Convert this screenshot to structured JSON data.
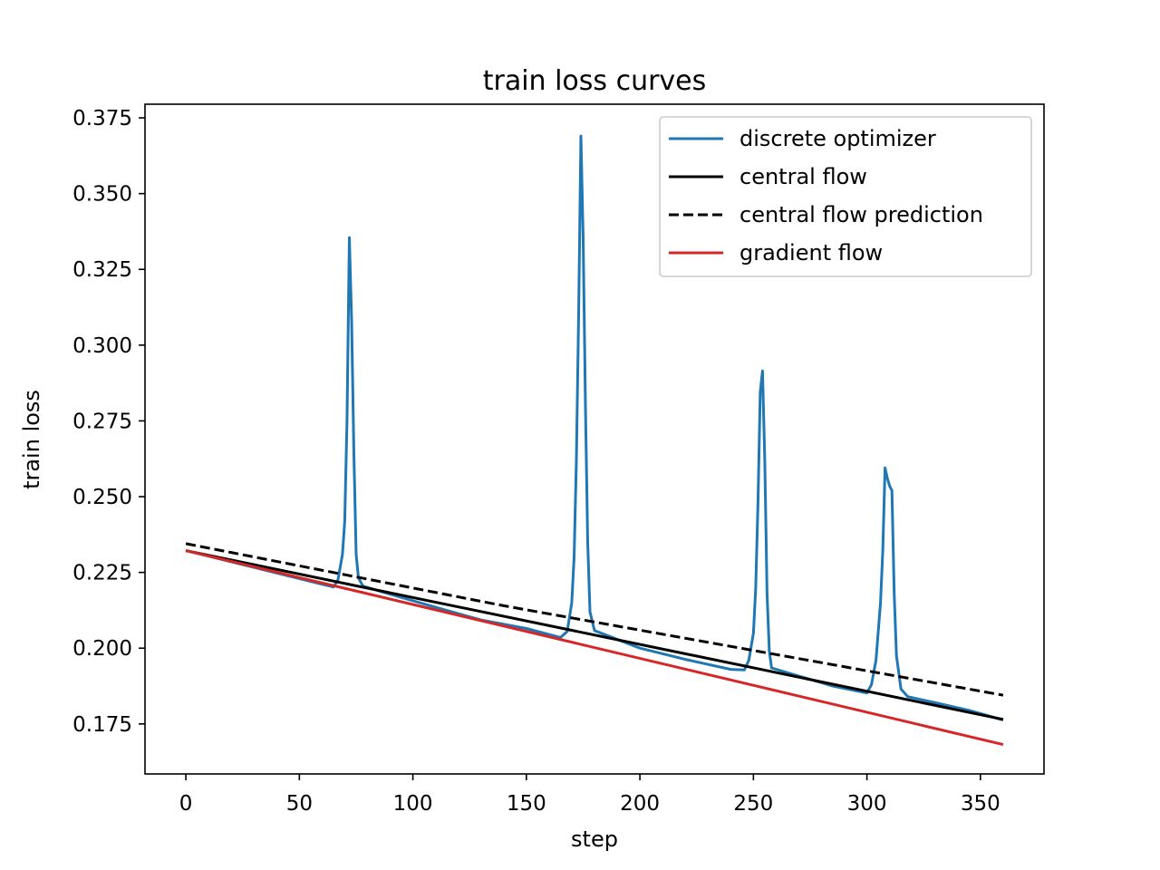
{
  "chart_data": {
    "type": "line",
    "title": "train loss curves",
    "xlabel": "step",
    "ylabel": "train loss",
    "xlim": [
      -18,
      378
    ],
    "ylim": [
      0.1585,
      0.3795
    ],
    "xticks": [
      0,
      50,
      100,
      150,
      200,
      250,
      300,
      350
    ],
    "xtick_labels": [
      "0",
      "50",
      "100",
      "150",
      "200",
      "250",
      "300",
      "350"
    ],
    "yticks": [
      0.175,
      0.2,
      0.225,
      0.25,
      0.275,
      0.3,
      0.325,
      0.35,
      0.375
    ],
    "ytick_labels": [
      "0.175",
      "0.200",
      "0.225",
      "0.250",
      "0.275",
      "0.300",
      "0.325",
      "0.350",
      "0.375"
    ],
    "grid": false,
    "legend_position": "top-right",
    "series": [
      {
        "name": "discrete optimizer",
        "color": "#1f77b4",
        "style": "solid",
        "points": [
          [
            0,
            0.2322
          ],
          [
            20,
            0.2285
          ],
          [
            40,
            0.2248
          ],
          [
            60,
            0.2211
          ],
          [
            65,
            0.2202
          ],
          [
            67,
            0.2225
          ],
          [
            69,
            0.231
          ],
          [
            70,
            0.242
          ],
          [
            71,
            0.275
          ],
          [
            72,
            0.3355
          ],
          [
            73,
            0.308
          ],
          [
            74,
            0.264
          ],
          [
            75,
            0.231
          ],
          [
            76,
            0.2232
          ],
          [
            78,
            0.2205
          ],
          [
            90,
            0.2178
          ],
          [
            110,
            0.2135
          ],
          [
            130,
            0.2093
          ],
          [
            150,
            0.2065
          ],
          [
            165,
            0.2035
          ],
          [
            168,
            0.2055
          ],
          [
            170,
            0.215
          ],
          [
            171,
            0.23
          ],
          [
            172,
            0.262
          ],
          [
            173,
            0.31
          ],
          [
            174,
            0.369
          ],
          [
            175,
            0.335
          ],
          [
            176,
            0.28
          ],
          [
            177,
            0.235
          ],
          [
            178,
            0.212
          ],
          [
            180,
            0.2058
          ],
          [
            200,
            0.2
          ],
          [
            220,
            0.1963
          ],
          [
            240,
            0.193
          ],
          [
            246,
            0.1928
          ],
          [
            248,
            0.196
          ],
          [
            250,
            0.205
          ],
          [
            251,
            0.22
          ],
          [
            252,
            0.248
          ],
          [
            253,
            0.2845
          ],
          [
            254,
            0.2915
          ],
          [
            255,
            0.262
          ],
          [
            256,
            0.218
          ],
          [
            257,
            0.199
          ],
          [
            258,
            0.1935
          ],
          [
            270,
            0.1908
          ],
          [
            285,
            0.1875
          ],
          [
            300,
            0.1852
          ],
          [
            302,
            0.188
          ],
          [
            304,
            0.196
          ],
          [
            306,
            0.215
          ],
          [
            307,
            0.232
          ],
          [
            308,
            0.2595
          ],
          [
            309,
            0.256
          ],
          [
            310,
            0.2535
          ],
          [
            311,
            0.252
          ],
          [
            312,
            0.218
          ],
          [
            313,
            0.1975
          ],
          [
            315,
            0.1865
          ],
          [
            318,
            0.184
          ],
          [
            330,
            0.182
          ],
          [
            345,
            0.1795
          ],
          [
            360,
            0.1763
          ]
        ]
      },
      {
        "name": "central flow",
        "color": "#000000",
        "style": "solid",
        "points": [
          [
            0,
            0.2322
          ],
          [
            360,
            0.1765
          ]
        ]
      },
      {
        "name": "central flow prediction",
        "color": "#000000",
        "style": "dashed",
        "points": [
          [
            0,
            0.2345
          ],
          [
            140,
            0.214
          ],
          [
            360,
            0.1845
          ]
        ]
      },
      {
        "name": "gradient flow",
        "color": "#d62728",
        "style": "solid",
        "points": [
          [
            0,
            0.2322
          ],
          [
            360,
            0.1682
          ]
        ]
      }
    ]
  }
}
